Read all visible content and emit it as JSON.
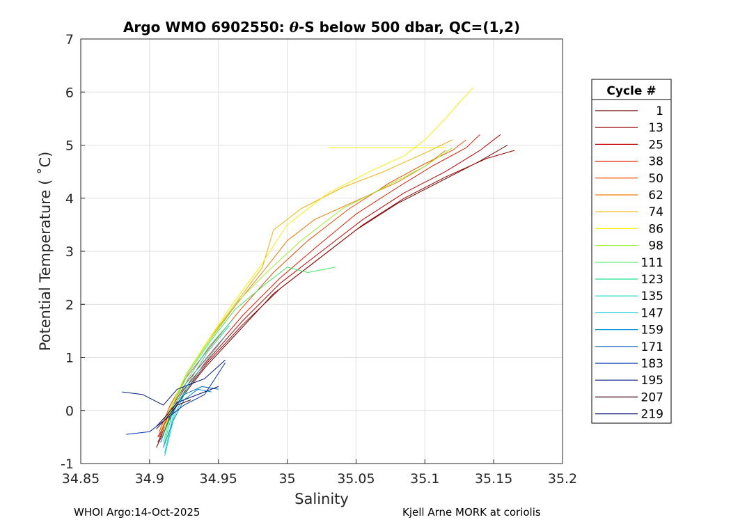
{
  "chart_data": {
    "type": "line",
    "title": "Argo WMO 6902550: θ-S below 500 dbar,  QC=(1,2)",
    "title_parts": {
      "prefix": "Argo WMO 6902550: ",
      "theta": "θ",
      "suffix": "-S below 500 dbar,  QC=(1,2)"
    },
    "xlabel": "Salinity",
    "ylabel": "Potential Temperature ( ˚C)",
    "xlim": [
      34.85,
      35.2
    ],
    "ylim": [
      -1,
      7
    ],
    "xticks": [
      "34.85",
      "34.9",
      "34.95",
      "35",
      "35.05",
      "35.1",
      "35.15",
      "35.2"
    ],
    "yticks": [
      "-1",
      "0",
      "1",
      "2",
      "3",
      "4",
      "5",
      "6",
      "7"
    ],
    "grid": true,
    "legend": {
      "title": "Cycle #",
      "placement": "right, outside plot",
      "entries": [
        {
          "label": "1",
          "color": "#6b0000"
        },
        {
          "label": "13",
          "color": "#9a0000"
        },
        {
          "label": "25",
          "color": "#c40000"
        },
        {
          "label": "38",
          "color": "#e01a00"
        },
        {
          "label": "50",
          "color": "#f04a00"
        },
        {
          "label": "62",
          "color": "#f57a00"
        },
        {
          "label": "74",
          "color": "#f5b000"
        },
        {
          "label": "86",
          "color": "#f8f000"
        },
        {
          "label": "98",
          "color": "#9df030"
        },
        {
          "label": "111",
          "color": "#3fe860"
        },
        {
          "label": "123",
          "color": "#20e090"
        },
        {
          "label": "135",
          "color": "#10d8c0"
        },
        {
          "label": "147",
          "color": "#10c8e0"
        },
        {
          "label": "159",
          "color": "#0090d0"
        },
        {
          "label": "171",
          "color": "#0060c0"
        },
        {
          "label": "183",
          "color": "#0030b0"
        },
        {
          "label": "195",
          "color": "#001a80"
        },
        {
          "label": "207",
          "color": "#3a0020"
        },
        {
          "label": "219",
          "color": "#000a6b"
        }
      ]
    },
    "series": [
      {
        "color": "#6b0000",
        "x": [
          34.905,
          34.912,
          34.922,
          34.94,
          34.965,
          34.99,
          35.02,
          35.05,
          35.08,
          35.11,
          35.14,
          35.16
        ],
        "y": [
          -0.7,
          -0.3,
          0.2,
          0.8,
          1.5,
          2.2,
          2.8,
          3.4,
          3.9,
          4.3,
          4.7,
          5.0
        ]
      },
      {
        "color": "#9a0000",
        "x": [
          34.906,
          34.913,
          34.924,
          34.942,
          34.967,
          34.995,
          35.025,
          35.055,
          35.085,
          35.115,
          35.145,
          35.165
        ],
        "y": [
          -0.6,
          -0.2,
          0.3,
          0.9,
          1.6,
          2.3,
          2.9,
          3.5,
          4.0,
          4.4,
          4.75,
          4.9
        ]
      },
      {
        "color": "#c40000",
        "x": [
          34.906,
          34.914,
          34.925,
          34.944,
          34.968,
          34.995,
          35.025,
          35.055,
          35.085,
          35.115,
          35.14,
          35.155
        ],
        "y": [
          -0.5,
          -0.1,
          0.4,
          1.0,
          1.7,
          2.4,
          3.0,
          3.6,
          4.1,
          4.5,
          4.9,
          5.2
        ]
      },
      {
        "color": "#e01a00",
        "x": [
          34.907,
          34.915,
          34.926,
          34.945,
          34.968,
          34.995,
          35.022,
          35.05,
          35.08,
          35.105,
          35.13,
          35.14
        ],
        "y": [
          -0.5,
          0.0,
          0.5,
          1.1,
          1.8,
          2.5,
          3.1,
          3.7,
          4.2,
          4.6,
          4.95,
          5.2
        ]
      },
      {
        "color": "#f04a00",
        "x": [
          34.907,
          34.915,
          34.926,
          34.944,
          34.966,
          34.99,
          35.015,
          35.045,
          35.075,
          35.1,
          35.12,
          35.13
        ],
        "y": [
          -0.4,
          0.1,
          0.6,
          1.2,
          1.9,
          2.6,
          3.2,
          3.8,
          4.3,
          4.65,
          4.9,
          5.1
        ]
      },
      {
        "color": "#f57a00",
        "x": [
          34.908,
          34.916,
          34.927,
          34.943,
          34.963,
          34.985,
          35.0,
          35.02,
          35.05,
          35.08,
          35.1,
          35.115
        ],
        "y": [
          -0.4,
          0.1,
          0.7,
          1.3,
          2.0,
          2.7,
          3.2,
          3.6,
          3.95,
          4.3,
          4.6,
          4.9
        ]
      },
      {
        "color": "#f5b000",
        "x": [
          34.908,
          34.916,
          34.927,
          34.942,
          34.962,
          34.982,
          34.99,
          35.01,
          35.04,
          35.07,
          35.1,
          35.12
        ],
        "y": [
          -0.4,
          0.1,
          0.7,
          1.3,
          2.0,
          2.7,
          3.4,
          3.8,
          4.2,
          4.5,
          4.85,
          5.1
        ]
      },
      {
        "color": "#f8f000",
        "x": [
          34.909,
          34.916,
          34.927,
          34.942,
          34.96,
          34.98,
          34.99,
          35.0,
          35.03,
          35.06,
          35.085,
          35.1,
          35.115,
          35.125,
          35.135
        ],
        "y": [
          -0.5,
          0.1,
          0.7,
          1.3,
          2.0,
          2.7,
          3.1,
          3.5,
          4.1,
          4.5,
          4.8,
          5.1,
          5.5,
          5.8,
          6.08
        ]
      },
      {
        "color": "#9df030",
        "x": [
          34.909,
          34.917,
          34.927,
          34.943,
          34.962,
          34.985,
          35.01,
          35.04,
          35.07,
          35.1,
          35.12
        ],
        "y": [
          -0.5,
          0.1,
          0.7,
          1.3,
          2.0,
          2.6,
          3.2,
          3.8,
          4.2,
          4.6,
          4.95
        ]
      },
      {
        "color": "#3fe860",
        "x": [
          34.91,
          34.917,
          34.928,
          34.944,
          34.962,
          34.985,
          35.0,
          35.015,
          35.035
        ],
        "y": [
          -0.6,
          0.1,
          0.7,
          1.3,
          1.9,
          2.4,
          2.7,
          2.6,
          2.7
        ]
      },
      {
        "color": "#20e090",
        "x": [
          34.91,
          34.917,
          34.928,
          34.943,
          34.96
        ],
        "y": [
          -0.7,
          0.0,
          0.6,
          1.2,
          1.7
        ]
      },
      {
        "color": "#10d8c0",
        "x": [
          34.911,
          34.918,
          34.928,
          34.942,
          34.958
        ],
        "y": [
          -0.8,
          0.0,
          0.5,
          1.1,
          1.6
        ]
      },
      {
        "color": "#10c8e0",
        "x": [
          34.911,
          34.918,
          34.927,
          34.94,
          34.955
        ],
        "y": [
          -0.85,
          -0.1,
          0.4,
          0.9,
          1.4
        ]
      },
      {
        "color": "#0090d0",
        "x": [
          34.91,
          34.917,
          34.925,
          34.935,
          34.945
        ],
        "y": [
          -0.7,
          -0.2,
          0.2,
          0.4,
          0.35
        ]
      },
      {
        "color": "#0060c0",
        "x": [
          34.908,
          34.915,
          34.925,
          34.938,
          34.95
        ],
        "y": [
          -0.6,
          -0.1,
          0.3,
          0.45,
          0.4
        ]
      },
      {
        "color": "#0030b0",
        "x": [
          34.883,
          34.9,
          34.91,
          34.925,
          34.94,
          34.955
        ],
        "y": [
          -0.45,
          -0.4,
          -0.2,
          0.1,
          0.3,
          0.9
        ]
      },
      {
        "color": "#001a80",
        "x": [
          34.88,
          34.895,
          34.91,
          34.92,
          34.94,
          34.955
        ],
        "y": [
          0.35,
          0.3,
          0.1,
          0.4,
          0.6,
          0.95
        ]
      },
      {
        "color": "#3a0020",
        "x": [
          34.905,
          34.912,
          34.92,
          34.93
        ],
        "y": [
          -0.35,
          -0.15,
          0.1,
          0.2
        ]
      },
      {
        "color": "#000a6b",
        "x": [
          34.905,
          34.912,
          34.92,
          34.935,
          34.95
        ],
        "y": [
          -0.3,
          -0.1,
          0.15,
          0.3,
          0.45
        ]
      }
    ],
    "annotations": [
      {
        "text": "horizontal spike",
        "series": "#f8f000",
        "x": [
          35.03,
          35.115
        ],
        "y": [
          4.95,
          4.95
        ]
      }
    ]
  },
  "footer": {
    "left": "WHOI Argo:14-Oct-2025",
    "right": "Kjell Arne MORK at coriolis"
  }
}
